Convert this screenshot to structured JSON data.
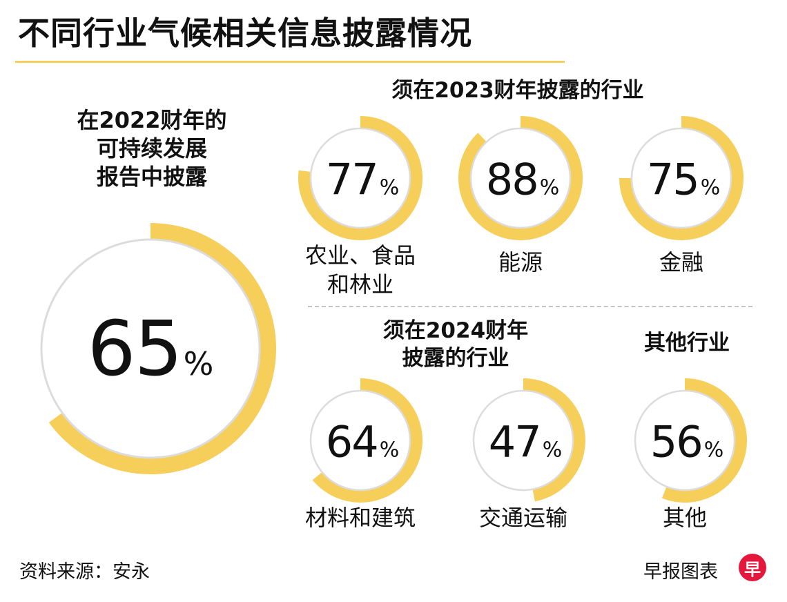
{
  "title": "不同行业气候相关信息披露情况",
  "sections": {
    "main": "在2022财年的\n可持续发展\n报告中披露",
    "fy2023": "须在2023财年披露的行业",
    "fy2024": "须在2024财年\n披露的行业",
    "other": "其他行业"
  },
  "colors": {
    "ring_fill": "#f6cf5b",
    "circle_border": "#dcdcdc",
    "accent_rule": "#f5cf5a",
    "logo_bg": "#e3183c"
  },
  "chart_data": {
    "type": "donut",
    "unit": "%",
    "max": 100,
    "items": [
      {
        "id": "overall",
        "label": "",
        "value": 65
      },
      {
        "id": "agriculture",
        "label": "农业、食品\n和林业",
        "value": 77
      },
      {
        "id": "energy",
        "label": "能源",
        "value": 88
      },
      {
        "id": "finance",
        "label": "金融",
        "value": 75
      },
      {
        "id": "materials",
        "label": "材料和建筑",
        "value": 64
      },
      {
        "id": "transport",
        "label": "交通运输",
        "value": 47
      },
      {
        "id": "others",
        "label": "其他",
        "value": 56
      }
    ]
  },
  "footer": {
    "source": "资料来源：安永",
    "brand": "早报图表",
    "logo_char": "早"
  }
}
